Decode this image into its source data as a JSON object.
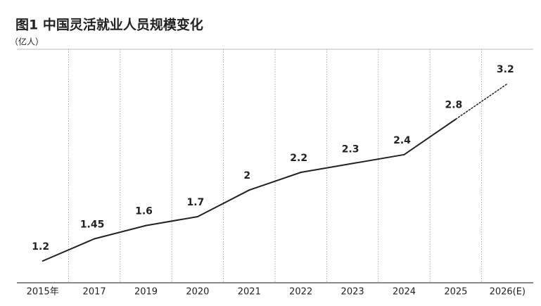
{
  "chart_data": {
    "type": "line",
    "title": "图1 中国灵活就业人员规模变化",
    "subtitle": "（亿人）",
    "categories": [
      "2015年",
      "2017",
      "2019",
      "2020",
      "2021",
      "2022",
      "2023",
      "2024",
      "2025",
      "2026(E)"
    ],
    "values": [
      1.2,
      1.45,
      1.6,
      1.7,
      2,
      2.2,
      2.3,
      2.4,
      2.8,
      3.2
    ],
    "color": "#222222",
    "dashed_last_segment": true
  }
}
